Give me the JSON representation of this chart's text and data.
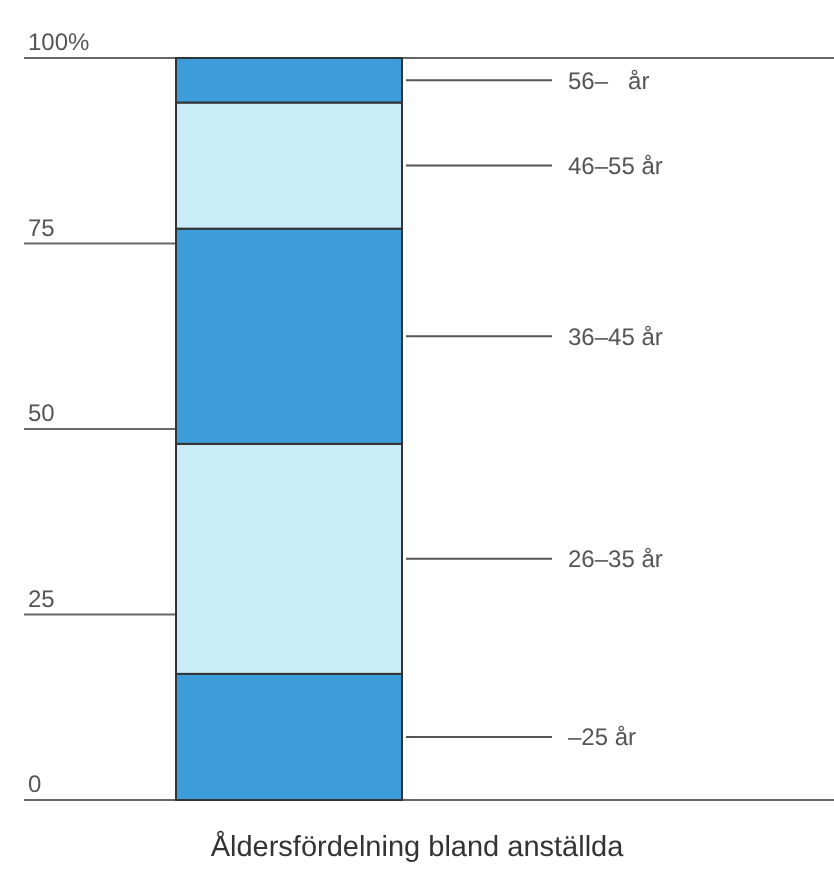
{
  "chart_data": {
    "type": "bar",
    "title": "Åldersfördelning bland anställda",
    "stacked": true,
    "categories": [
      null
    ],
    "ylim": [
      0,
      100
    ],
    "yticks": [
      0,
      25,
      50,
      75,
      {
        "value": 100,
        "label": "100%"
      }
    ],
    "series": [
      {
        "name": "–25 år",
        "color": "#3d9ddb",
        "values": [
          17
        ]
      },
      {
        "name": "26–35 år",
        "color": "#c9ecf8",
        "values": [
          31
        ]
      },
      {
        "name": "36–45 år",
        "color": "#3d9ddb",
        "values": [
          29
        ]
      },
      {
        "name": "46–55 år",
        "color": "#c9ecf8",
        "values": [
          17
        ]
      },
      {
        "name": "56–   år",
        "color": "#3d9ddb",
        "values": [
          6
        ]
      }
    ]
  }
}
